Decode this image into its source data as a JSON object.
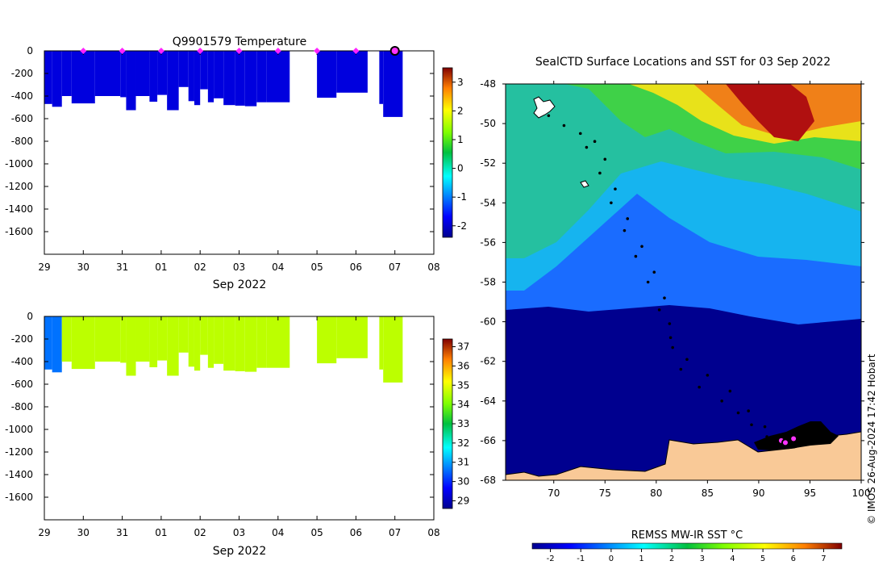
{
  "chart_data": [
    {
      "type": "heatmap",
      "id": "profile-temperature",
      "title": "Q9901579  Temperature",
      "xlabel": "Sep 2022",
      "x_ticks": [
        "29",
        "30",
        "31",
        "01",
        "02",
        "03",
        "04",
        "05",
        "06",
        "07",
        "08"
      ],
      "y_ticks": [
        "0",
        "-200",
        "-400",
        "-600",
        "-800",
        "-1000",
        "-1200",
        "-1400",
        "-1600"
      ],
      "ylim": [
        -1800,
        0
      ],
      "x_range_days": [
        0,
        10
      ],
      "colorbar": {
        "ticks": [
          3,
          2,
          1,
          0,
          -1,
          -2
        ],
        "range": [
          -2.4,
          3.5
        ]
      },
      "profiles": [
        {
          "x0": 0.0,
          "x1": 0.2,
          "depth": 470,
          "value": -1.9
        },
        {
          "x0": 0.2,
          "x1": 0.45,
          "depth": 495,
          "value": -1.9
        },
        {
          "x0": 0.45,
          "x1": 0.7,
          "depth": 400,
          "value": -1.9
        },
        {
          "x0": 0.7,
          "x1": 1.3,
          "depth": 465,
          "value": -1.9
        },
        {
          "x0": 1.3,
          "x1": 1.95,
          "depth": 400,
          "value": -1.9
        },
        {
          "x0": 1.95,
          "x1": 2.1,
          "depth": 410,
          "value": -1.9
        },
        {
          "x0": 2.1,
          "x1": 2.35,
          "depth": 525,
          "value": -1.9
        },
        {
          "x0": 2.35,
          "x1": 2.7,
          "depth": 400,
          "value": -1.9
        },
        {
          "x0": 2.7,
          "x1": 2.9,
          "depth": 450,
          "value": -1.9
        },
        {
          "x0": 2.9,
          "x1": 3.15,
          "depth": 390,
          "value": -1.9
        },
        {
          "x0": 3.15,
          "x1": 3.45,
          "depth": 525,
          "value": -1.9
        },
        {
          "x0": 3.45,
          "x1": 3.7,
          "depth": 320,
          "value": -1.9
        },
        {
          "x0": 3.7,
          "x1": 3.85,
          "depth": 445,
          "value": -1.9
        },
        {
          "x0": 3.85,
          "x1": 4.0,
          "depth": 480,
          "value": -1.9
        },
        {
          "x0": 4.0,
          "x1": 4.2,
          "depth": 340,
          "value": -1.9
        },
        {
          "x0": 4.2,
          "x1": 4.35,
          "depth": 455,
          "value": -1.9
        },
        {
          "x0": 4.35,
          "x1": 4.6,
          "depth": 420,
          "value": -1.9
        },
        {
          "x0": 4.6,
          "x1": 4.9,
          "depth": 480,
          "value": -1.9
        },
        {
          "x0": 4.9,
          "x1": 5.15,
          "depth": 485,
          "value": -1.9
        },
        {
          "x0": 5.15,
          "x1": 5.45,
          "depth": 490,
          "value": -1.9
        },
        {
          "x0": 5.45,
          "x1": 5.7,
          "depth": 455,
          "value": -1.9
        },
        {
          "x0": 5.7,
          "x1": 6.3,
          "depth": 455,
          "value": -1.9
        },
        {
          "x0": 7.0,
          "x1": 7.5,
          "depth": 415,
          "value": -1.9
        },
        {
          "x0": 7.5,
          "x1": 8.3,
          "depth": 370,
          "value": -1.9
        },
        {
          "x0": 8.6,
          "x1": 8.7,
          "depth": 470,
          "value": -1.9
        },
        {
          "x0": 8.7,
          "x1": 9.2,
          "depth": 585,
          "value": -1.9
        }
      ],
      "surface_markers_x": [
        1,
        2,
        3,
        4,
        5,
        6,
        7,
        8,
        9
      ],
      "highlight_marker_x": 9
    },
    {
      "type": "heatmap",
      "id": "profile-salinity",
      "title": "",
      "xlabel": "Sep 2022",
      "x_ticks": [
        "29",
        "30",
        "31",
        "01",
        "02",
        "03",
        "04",
        "05",
        "06",
        "07",
        "08"
      ],
      "y_ticks": [
        "0",
        "-200",
        "-400",
        "-600",
        "-800",
        "-1000",
        "-1200",
        "-1400",
        "-1600"
      ],
      "ylim": [
        -1800,
        0
      ],
      "x_range_days": [
        0,
        10
      ],
      "colorbar": {
        "ticks": [
          37,
          36,
          35,
          34,
          33,
          32,
          31,
          30,
          29
        ],
        "range": [
          28.6,
          37.4
        ]
      },
      "profiles": [
        {
          "x0": 0.0,
          "x1": 0.2,
          "depth": 470,
          "value": 30.6
        },
        {
          "x0": 0.2,
          "x1": 0.45,
          "depth": 495,
          "value": 30.6
        },
        {
          "x0": 0.45,
          "x1": 0.7,
          "depth": 400,
          "value": 34.6
        },
        {
          "x0": 0.7,
          "x1": 1.3,
          "depth": 465,
          "value": 34.6
        },
        {
          "x0": 1.3,
          "x1": 1.95,
          "depth": 400,
          "value": 34.6
        },
        {
          "x0": 1.95,
          "x1": 2.1,
          "depth": 410,
          "value": 34.6
        },
        {
          "x0": 2.1,
          "x1": 2.35,
          "depth": 525,
          "value": 34.6
        },
        {
          "x0": 2.35,
          "x1": 2.7,
          "depth": 400,
          "value": 34.6
        },
        {
          "x0": 2.7,
          "x1": 2.9,
          "depth": 450,
          "value": 34.6
        },
        {
          "x0": 2.9,
          "x1": 3.15,
          "depth": 390,
          "value": 34.6
        },
        {
          "x0": 3.15,
          "x1": 3.45,
          "depth": 525,
          "value": 34.6
        },
        {
          "x0": 3.45,
          "x1": 3.7,
          "depth": 320,
          "value": 34.6
        },
        {
          "x0": 3.7,
          "x1": 3.85,
          "depth": 445,
          "value": 34.6
        },
        {
          "x0": 3.85,
          "x1": 4.0,
          "depth": 480,
          "value": 34.6
        },
        {
          "x0": 4.0,
          "x1": 4.2,
          "depth": 340,
          "value": 34.6
        },
        {
          "x0": 4.2,
          "x1": 4.35,
          "depth": 455,
          "value": 34.6
        },
        {
          "x0": 4.35,
          "x1": 4.6,
          "depth": 420,
          "value": 34.6
        },
        {
          "x0": 4.6,
          "x1": 4.9,
          "depth": 480,
          "value": 34.6
        },
        {
          "x0": 4.9,
          "x1": 5.15,
          "depth": 485,
          "value": 34.6
        },
        {
          "x0": 5.15,
          "x1": 5.45,
          "depth": 490,
          "value": 34.6
        },
        {
          "x0": 5.45,
          "x1": 5.7,
          "depth": 455,
          "value": 34.6
        },
        {
          "x0": 5.7,
          "x1": 6.3,
          "depth": 455,
          "value": 34.6
        },
        {
          "x0": 7.0,
          "x1": 7.5,
          "depth": 415,
          "value": 34.6
        },
        {
          "x0": 7.5,
          "x1": 8.3,
          "depth": 370,
          "value": 34.6
        },
        {
          "x0": 8.6,
          "x1": 8.7,
          "depth": 470,
          "value": 34.6
        },
        {
          "x0": 8.7,
          "x1": 9.2,
          "depth": 585,
          "value": 34.6
        }
      ]
    },
    {
      "type": "heatmap",
      "id": "sst-map",
      "title": "SealCTD Surface Locations and SST for 03 Sep 2022",
      "x_ticks": [
        "70",
        "75",
        "80",
        "85",
        "90",
        "95",
        "100"
      ],
      "y_ticks": [
        "-48",
        "-50",
        "-52",
        "-54",
        "-56",
        "-58",
        "-60",
        "-62",
        "-64",
        "-66",
        "-68"
      ],
      "xlim": [
        65.3,
        100
      ],
      "ylim": [
        -68,
        -48
      ],
      "colorbar_label": "REMSS MW-IR SST °C",
      "colorbar_ticks": [
        "-2",
        "-1",
        "0",
        "1",
        "2",
        "3",
        "4",
        "5",
        "6",
        "7"
      ],
      "colorbar_range": [
        -2.6,
        7.6
      ],
      "credit": "© IMOS 26-Aug-2024 17:42 Hobart",
      "land_color": "#f9c997",
      "track_points": [
        {
          "lon": 69.5,
          "lat": -49.6
        },
        {
          "lon": 71.0,
          "lat": -50.1
        },
        {
          "lon": 72.6,
          "lat": -50.5
        },
        {
          "lon": 74.0,
          "lat": -50.9
        },
        {
          "lon": 75.0,
          "lat": -51.8
        },
        {
          "lon": 76.0,
          "lat": -53.3
        },
        {
          "lon": 77.2,
          "lat": -54.8
        },
        {
          "lon": 78.6,
          "lat": -56.2
        },
        {
          "lon": 79.8,
          "lat": -57.5
        },
        {
          "lon": 80.8,
          "lat": -58.8
        },
        {
          "lon": 81.3,
          "lat": -60.1
        },
        {
          "lon": 81.6,
          "lat": -61.3
        },
        {
          "lon": 82.4,
          "lat": -62.4
        },
        {
          "lon": 84.2,
          "lat": -63.3
        },
        {
          "lon": 86.4,
          "lat": -64.0
        },
        {
          "lon": 88.0,
          "lat": -64.6
        },
        {
          "lon": 89.3,
          "lat": -65.2
        },
        {
          "lon": 90.8,
          "lat": -65.8
        },
        {
          "lon": 92.0,
          "lat": -66.1
        },
        {
          "lon": 73.2,
          "lat": -51.2
        },
        {
          "lon": 74.5,
          "lat": -52.5
        },
        {
          "lon": 75.6,
          "lat": -54.0
        },
        {
          "lon": 76.9,
          "lat": -55.4
        },
        {
          "lon": 78.0,
          "lat": -56.7
        },
        {
          "lon": 79.2,
          "lat": -58.0
        },
        {
          "lon": 80.3,
          "lat": -59.4
        },
        {
          "lon": 81.4,
          "lat": -60.8
        },
        {
          "lon": 83.0,
          "lat": -61.9
        },
        {
          "lon": 85.0,
          "lat": -62.7
        },
        {
          "lon": 87.2,
          "lat": -63.5
        },
        {
          "lon": 89.0,
          "lat": -64.5
        },
        {
          "lon": 90.6,
          "lat": -65.3
        },
        {
          "lon": 92.6,
          "lat": -65.9
        }
      ],
      "current_positions": [
        {
          "lon": 92.2,
          "lat": -66.0
        },
        {
          "lon": 93.4,
          "lat": -65.9
        },
        {
          "lon": 92.6,
          "lat": -66.1
        }
      ]
    }
  ]
}
